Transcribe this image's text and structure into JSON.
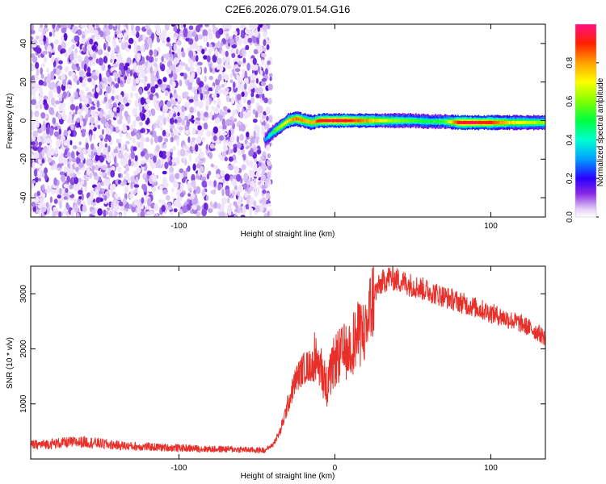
{
  "title": "C2E6.2026.079.01.54.G16",
  "chart_data": [
    {
      "type": "heatmap",
      "name": "spectrogram",
      "xlabel": "Height of straight line (km)",
      "ylabel": "Frequency (Hz)",
      "xlim": [
        -195,
        135
      ],
      "ylim": [
        -50,
        50
      ],
      "xticks": [
        -100,
        0,
        100
      ],
      "xtick_labels": [
        "-100",
        "",
        "100"
      ],
      "yticks": [
        -40,
        -20,
        0,
        20,
        40
      ],
      "ytick_labels": [
        "-40",
        "-20",
        "0",
        "20",
        "40"
      ],
      "noise_region_x": [
        -195,
        -43
      ],
      "signal_track": {
        "x": [
          -45,
          -40,
          -35,
          -30,
          -25,
          -20,
          -15,
          -10,
          -5,
          0,
          10,
          20,
          30,
          40,
          50,
          60,
          70,
          80,
          90,
          100,
          110,
          120,
          135
        ],
        "freq_hz": [
          -10,
          -6,
          -3,
          0,
          1,
          0,
          -1,
          0,
          0,
          0,
          0,
          0,
          0,
          0,
          0,
          -0.5,
          -0.5,
          -1,
          -1,
          -1,
          -1,
          -1,
          -1
        ],
        "normalized_amplitude": [
          0.3,
          0.5,
          0.65,
          0.75,
          0.85,
          0.8,
          0.75,
          0.9,
          0.95,
          0.95,
          0.9,
          0.8,
          0.7,
          0.6,
          0.55,
          0.5,
          0.55,
          0.95,
          0.95,
          0.9,
          0.75,
          0.7,
          0.6
        ]
      },
      "colorbar": {
        "label": "Normalized spectral amplitude",
        "range": [
          0,
          1
        ],
        "ticks": [
          0.0,
          0.2,
          0.4,
          0.6,
          0.8
        ],
        "tick_labels": [
          "0.0",
          "0.2",
          "0.4",
          "0.6",
          "0.8"
        ]
      }
    },
    {
      "type": "line",
      "name": "snr",
      "xlabel": "Height of straight line (km)",
      "ylabel": "SNR (10 * v/v)",
      "xlim": [
        -195,
        135
      ],
      "ylim": [
        0,
        3500
      ],
      "xticks": [
        -100,
        0,
        100
      ],
      "xtick_labels": [
        "-100",
        "0",
        "100"
      ],
      "yticks": [
        1000,
        2000,
        3000
      ],
      "ytick_labels": [
        "1000",
        "2000",
        "3000"
      ],
      "color": "#e8302a",
      "series": [
        {
          "name": "SNR",
          "x": [
            -195,
            -180,
            -170,
            -160,
            -150,
            -140,
            -130,
            -120,
            -110,
            -100,
            -90,
            -80,
            -70,
            -60,
            -50,
            -45,
            -40,
            -35,
            -30,
            -25,
            -20,
            -15,
            -10,
            -5,
            0,
            5,
            10,
            15,
            20,
            25,
            30,
            35,
            40,
            50,
            60,
            70,
            80,
            90,
            100,
            110,
            120,
            130,
            135
          ],
          "y": [
            250,
            280,
            300,
            310,
            280,
            250,
            230,
            220,
            210,
            200,
            190,
            180,
            180,
            170,
            160,
            160,
            250,
            500,
            1000,
            1450,
            1650,
            1700,
            1750,
            1300,
            1800,
            1900,
            2050,
            2250,
            2350,
            3000,
            3200,
            3300,
            3250,
            3150,
            3050,
            2950,
            2850,
            2750,
            2650,
            2550,
            2450,
            2300,
            2200
          ]
        }
      ]
    }
  ]
}
